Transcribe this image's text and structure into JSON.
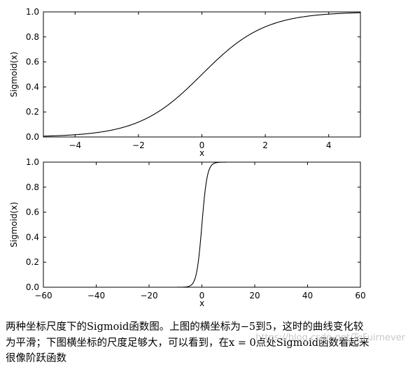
{
  "chart_data": [
    {
      "type": "line",
      "function": "sigmoid",
      "xlabel": "x",
      "ylabel": "Sigmoid(x)",
      "xlim": [
        -5,
        5
      ],
      "ylim": [
        0,
        1
      ],
      "x_ticks": [
        -4,
        -2,
        0,
        2,
        4
      ],
      "x_tick_labels": [
        "−4",
        "−2",
        "0",
        "2",
        "4"
      ],
      "y_ticks": [
        0,
        0.2,
        0.4,
        0.6,
        0.8,
        1.0
      ],
      "y_tick_labels": [
        "0.0",
        "0.2",
        "0.4",
        "0.6",
        "0.8",
        "1.0"
      ],
      "grid": false,
      "series": [
        {
          "color": "#000000",
          "x": [
            -5,
            -4,
            -3,
            -2,
            -1,
            0,
            1,
            2,
            3,
            4,
            5
          ],
          "y": [
            0.0067,
            0.018,
            0.047,
            0.119,
            0.269,
            0.5,
            0.731,
            0.881,
            0.953,
            0.982,
            0.9933
          ]
        }
      ]
    },
    {
      "type": "line",
      "function": "sigmoid",
      "xlabel": "x",
      "ylabel": "Sigmoid(x)",
      "xlim": [
        -60,
        60
      ],
      "ylim": [
        0,
        1
      ],
      "x_ticks": [
        -60,
        -40,
        -20,
        0,
        20,
        40,
        60
      ],
      "x_tick_labels": [
        "−60",
        "−40",
        "−20",
        "0",
        "20",
        "40",
        "60"
      ],
      "y_ticks": [
        0,
        0.2,
        0.4,
        0.6,
        0.8,
        1.0
      ],
      "y_tick_labels": [
        "0.0",
        "0.2",
        "0.4",
        "0.6",
        "0.8",
        "1.0"
      ],
      "grid": false,
      "series": [
        {
          "color": "#000000",
          "x": [
            -60,
            -10,
            -6,
            -4,
            -2,
            0,
            2,
            4,
            6,
            10,
            60
          ],
          "y": [
            0,
            4.54e-05,
            0.0025,
            0.018,
            0.119,
            0.5,
            0.881,
            0.982,
            0.9975,
            0.99995,
            1
          ]
        }
      ]
    }
  ],
  "caption": {
    "line1": "两种坐标尺度下的Sigmoid函数图。上图的横坐标为−5到5，这时的曲线变化较",
    "line2": "为平滑；下图横坐标的尺度足够大，可以看到，在x = 0点处Sigmoid函数看起来",
    "line3": "很像阶跃函数"
  },
  "watermark": "https://blog.csdn.net/TeFuirnever"
}
